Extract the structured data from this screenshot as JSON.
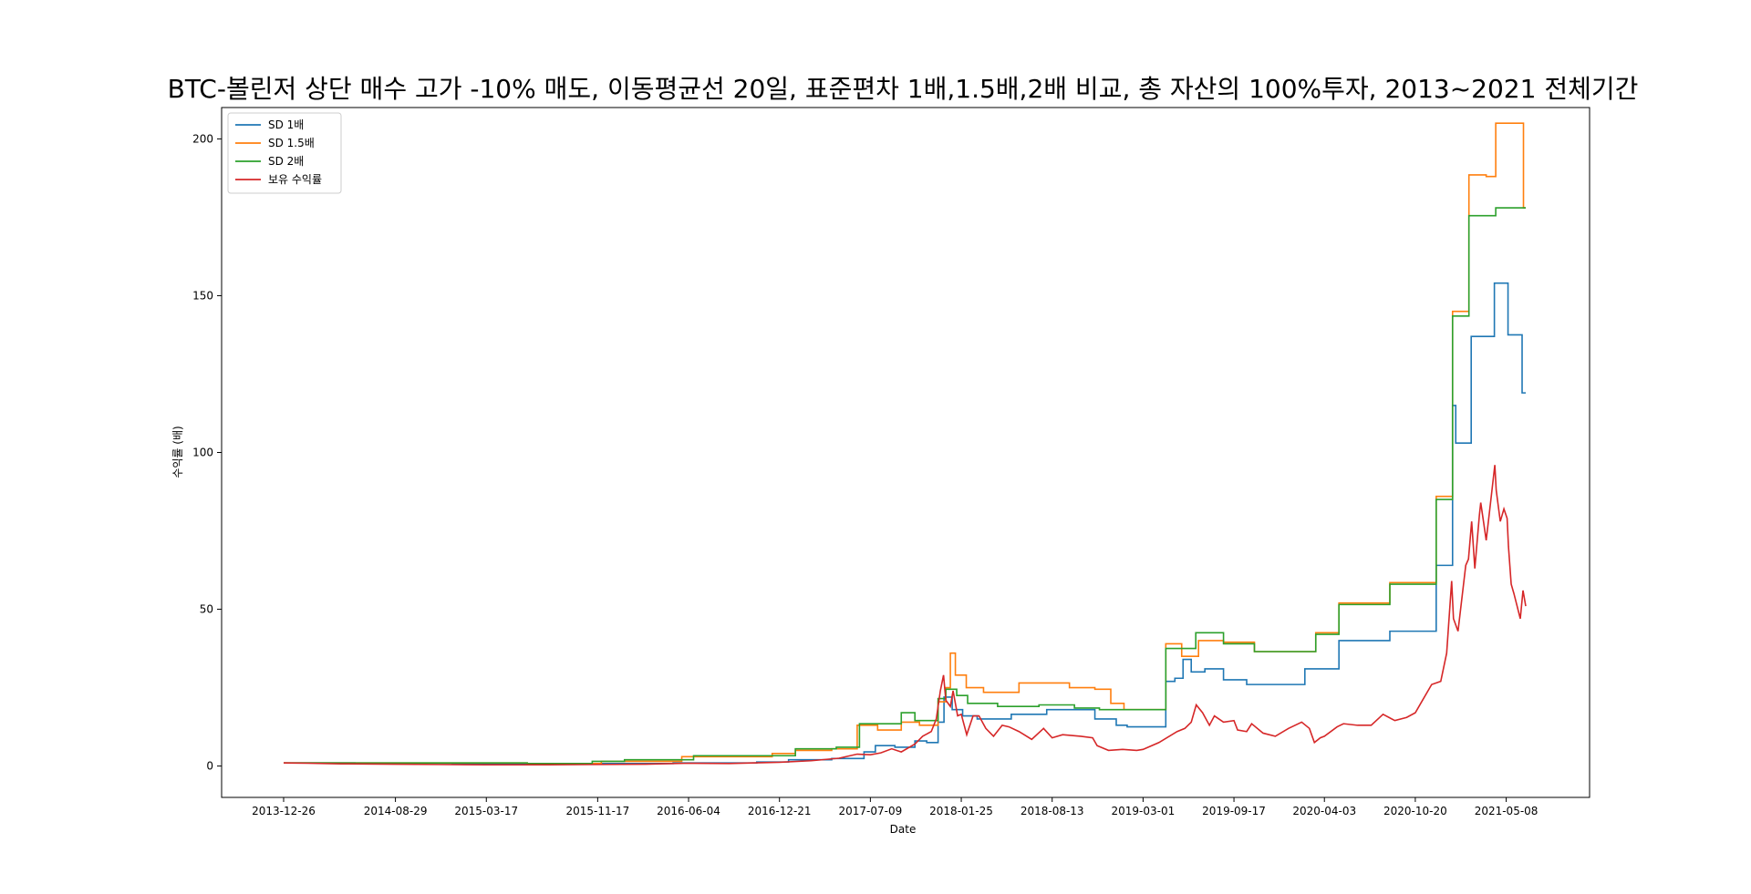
{
  "chart_data": {
    "type": "line",
    "title": "BTC-볼린저 상단 매수 고가 -10% 매도, 이동평균선 20일, 표준편차 1배,1.5배,2배 비교, 총 자산의 100%투자, 2013~2021 전체기간",
    "xlabel": "Date",
    "ylabel": "수익률 (배)",
    "x_range": [
      "2013-12-26",
      "2021-06-20"
    ],
    "ylim": [
      -10,
      210
    ],
    "yticks": [
      0,
      50,
      100,
      150,
      200
    ],
    "xticks": [
      "2013-12-26",
      "2014-08-29",
      "2015-03-17",
      "2015-11-17",
      "2016-06-04",
      "2016-12-21",
      "2017-07-09",
      "2018-01-25",
      "2018-08-13",
      "2019-03-01",
      "2019-09-17",
      "2020-04-03",
      "2020-10-20",
      "2021-05-08"
    ],
    "legend_position": "upper-left",
    "grid": false,
    "series": [
      {
        "name": "SD 1배",
        "color": "#1f77b4",
        "step": true,
        "points": [
          [
            "2013-12-26",
            1
          ],
          [
            "2014-06-01",
            0.9
          ],
          [
            "2015-01-01",
            0.7
          ],
          [
            "2015-10-01",
            0.8
          ],
          [
            "2016-05-01",
            1.0
          ],
          [
            "2016-11-01",
            1.3
          ],
          [
            "2017-01-10",
            2.0
          ],
          [
            "2017-04-15",
            2.4
          ],
          [
            "2017-06-25",
            4.5
          ],
          [
            "2017-07-20",
            6.5
          ],
          [
            "2017-09-01",
            6.0
          ],
          [
            "2017-10-15",
            8.0
          ],
          [
            "2017-11-10",
            7.5
          ],
          [
            "2017-12-05",
            14.0
          ],
          [
            "2017-12-18",
            22.0
          ],
          [
            "2018-01-05",
            18.0
          ],
          [
            "2018-01-28",
            16.0
          ],
          [
            "2018-03-01",
            15.0
          ],
          [
            "2018-05-15",
            16.5
          ],
          [
            "2018-08-01",
            18.0
          ],
          [
            "2018-11-15",
            15.0
          ],
          [
            "2019-01-01",
            13.0
          ],
          [
            "2019-01-25",
            12.5
          ],
          [
            "2019-04-20",
            27.0
          ],
          [
            "2019-05-10",
            28.0
          ],
          [
            "2019-05-28",
            34.0
          ],
          [
            "2019-06-15",
            30.0
          ],
          [
            "2019-07-15",
            31.0
          ],
          [
            "2019-08-25",
            27.5
          ],
          [
            "2019-10-15",
            26.0
          ],
          [
            "2020-02-20",
            31.0
          ],
          [
            "2020-05-05",
            40.0
          ],
          [
            "2020-08-25",
            43.0
          ],
          [
            "2020-12-05",
            64.0
          ],
          [
            "2021-01-10",
            115.0
          ],
          [
            "2021-01-17",
            103.0
          ],
          [
            "2021-02-20",
            137.0
          ],
          [
            "2021-04-12",
            154.0
          ],
          [
            "2021-05-12",
            137.5
          ],
          [
            "2021-06-12",
            119.0
          ],
          [
            "2021-06-20",
            119.0
          ]
        ]
      },
      {
        "name": "SD 1.5배",
        "color": "#ff7f0e",
        "step": true,
        "points": [
          [
            "2013-12-26",
            1
          ],
          [
            "2014-04-01",
            1.0
          ],
          [
            "2015-06-15",
            0.8
          ],
          [
            "2015-11-25",
            1.5
          ],
          [
            "2016-05-20",
            3.0
          ],
          [
            "2016-12-05",
            4.0
          ],
          [
            "2017-01-25",
            5.0
          ],
          [
            "2017-04-15",
            5.5
          ],
          [
            "2017-06-10",
            13.0
          ],
          [
            "2017-07-25",
            11.5
          ],
          [
            "2017-09-15",
            14.0
          ],
          [
            "2017-10-25",
            13.0
          ],
          [
            "2017-12-05",
            20.5
          ],
          [
            "2017-12-22",
            25.0
          ],
          [
            "2018-01-01",
            36.0
          ],
          [
            "2018-01-12",
            29.0
          ],
          [
            "2018-02-05",
            25.0
          ],
          [
            "2018-03-15",
            23.5
          ],
          [
            "2018-06-01",
            26.5
          ],
          [
            "2018-09-20",
            25.0
          ],
          [
            "2018-11-15",
            24.5
          ],
          [
            "2018-12-20",
            20.0
          ],
          [
            "2019-01-18",
            18.0
          ],
          [
            "2019-04-20",
            39.0
          ],
          [
            "2019-05-25",
            35.0
          ],
          [
            "2019-07-01",
            40.0
          ],
          [
            "2019-08-25",
            39.5
          ],
          [
            "2019-11-01",
            36.5
          ],
          [
            "2020-03-15",
            42.5
          ],
          [
            "2020-05-05",
            52.0
          ],
          [
            "2020-08-25",
            58.5
          ],
          [
            "2020-12-05",
            86.0
          ],
          [
            "2021-01-10",
            145.0
          ],
          [
            "2021-02-15",
            188.5
          ],
          [
            "2021-03-25",
            188.0
          ],
          [
            "2021-04-15",
            205.0
          ],
          [
            "2021-06-15",
            178.0
          ],
          [
            "2021-06-20",
            178.0
          ]
        ]
      },
      {
        "name": "SD 2배",
        "color": "#2ca02c",
        "step": true,
        "points": [
          [
            "2013-12-26",
            1
          ],
          [
            "2014-04-01",
            1.0
          ],
          [
            "2015-06-15",
            0.8
          ],
          [
            "2015-11-05",
            1.5
          ],
          [
            "2016-01-15",
            2.0
          ],
          [
            "2016-06-15",
            3.3
          ],
          [
            "2016-11-01",
            3.3
          ],
          [
            "2017-01-25",
            5.5
          ],
          [
            "2017-04-25",
            6.0
          ],
          [
            "2017-06-15",
            13.5
          ],
          [
            "2017-09-15",
            17.0
          ],
          [
            "2017-10-15",
            14.5
          ],
          [
            "2017-12-05",
            21.5
          ],
          [
            "2017-12-22",
            24.5
          ],
          [
            "2018-01-15",
            22.5
          ],
          [
            "2018-02-08",
            20.0
          ],
          [
            "2018-04-15",
            19.0
          ],
          [
            "2018-07-15",
            19.5
          ],
          [
            "2018-10-01",
            18.5
          ],
          [
            "2018-11-25",
            18.0
          ],
          [
            "2019-04-20",
            37.5
          ],
          [
            "2019-06-25",
            42.5
          ],
          [
            "2019-08-25",
            39.0
          ],
          [
            "2019-11-01",
            36.5
          ],
          [
            "2020-03-15",
            42.0
          ],
          [
            "2020-05-05",
            51.5
          ],
          [
            "2020-08-25",
            58.0
          ],
          [
            "2020-12-05",
            85.0
          ],
          [
            "2021-01-10",
            143.5
          ],
          [
            "2021-02-15",
            175.5
          ],
          [
            "2021-04-15",
            178.0
          ],
          [
            "2021-06-20",
            178.0
          ]
        ]
      },
      {
        "name": "보유 수익률",
        "color": "#d62728",
        "step": false,
        "points": [
          [
            "2013-12-26",
            1.0
          ],
          [
            "2014-02-15",
            0.9
          ],
          [
            "2014-05-01",
            0.7
          ],
          [
            "2014-08-29",
            0.6
          ],
          [
            "2014-12-01",
            0.5
          ],
          [
            "2015-03-17",
            0.4
          ],
          [
            "2015-08-01",
            0.4
          ],
          [
            "2015-11-17",
            0.5
          ],
          [
            "2016-03-01",
            0.6
          ],
          [
            "2016-06-04",
            0.9
          ],
          [
            "2016-09-01",
            0.8
          ],
          [
            "2016-12-21",
            1.2
          ],
          [
            "2017-03-01",
            1.7
          ],
          [
            "2017-05-01",
            2.5
          ],
          [
            "2017-06-10",
            3.8
          ],
          [
            "2017-07-09",
            3.6
          ],
          [
            "2017-08-01",
            4.2
          ],
          [
            "2017-08-25",
            5.5
          ],
          [
            "2017-09-15",
            4.5
          ],
          [
            "2017-10-15",
            7.0
          ],
          [
            "2017-11-01",
            9.5
          ],
          [
            "2017-11-20",
            11.0
          ],
          [
            "2017-12-01",
            15.0
          ],
          [
            "2017-12-10",
            24.0
          ],
          [
            "2017-12-17",
            29.0
          ],
          [
            "2017-12-22",
            21.0
          ],
          [
            "2018-01-01",
            19.0
          ],
          [
            "2018-01-07",
            24.0
          ],
          [
            "2018-01-17",
            16.0
          ],
          [
            "2018-01-25",
            16.5
          ],
          [
            "2018-02-06",
            10.0
          ],
          [
            "2018-02-20",
            16.0
          ],
          [
            "2018-03-05",
            16.0
          ],
          [
            "2018-03-20",
            12.0
          ],
          [
            "2018-04-06",
            9.5
          ],
          [
            "2018-04-25",
            13.0
          ],
          [
            "2018-05-10",
            12.5
          ],
          [
            "2018-06-01",
            11.0
          ],
          [
            "2018-06-29",
            8.5
          ],
          [
            "2018-07-25",
            12.0
          ],
          [
            "2018-08-13",
            9.0
          ],
          [
            "2018-09-05",
            10.0
          ],
          [
            "2018-10-15",
            9.5
          ],
          [
            "2018-11-10",
            9.0
          ],
          [
            "2018-11-20",
            6.5
          ],
          [
            "2018-12-15",
            5.0
          ],
          [
            "2019-01-15",
            5.3
          ],
          [
            "2019-02-15",
            5.0
          ],
          [
            "2019-03-01",
            5.3
          ],
          [
            "2019-04-05",
            7.5
          ],
          [
            "2019-05-15",
            11.0
          ],
          [
            "2019-06-01",
            12.0
          ],
          [
            "2019-06-15",
            14.0
          ],
          [
            "2019-06-26",
            19.5
          ],
          [
            "2019-07-10",
            17.0
          ],
          [
            "2019-07-25",
            13.0
          ],
          [
            "2019-08-05",
            16.0
          ],
          [
            "2019-08-25",
            14.0
          ],
          [
            "2019-09-17",
            14.5
          ],
          [
            "2019-09-25",
            11.5
          ],
          [
            "2019-10-15",
            11.0
          ],
          [
            "2019-10-26",
            13.5
          ],
          [
            "2019-11-20",
            10.5
          ],
          [
            "2019-12-17",
            9.5
          ],
          [
            "2020-01-15",
            12.0
          ],
          [
            "2020-02-13",
            14.0
          ],
          [
            "2020-03-01",
            12.0
          ],
          [
            "2020-03-12",
            7.5
          ],
          [
            "2020-03-25",
            9.0
          ],
          [
            "2020-04-03",
            9.5
          ],
          [
            "2020-05-01",
            12.5
          ],
          [
            "2020-05-15",
            13.5
          ],
          [
            "2020-06-15",
            13.0
          ],
          [
            "2020-07-15",
            13.0
          ],
          [
            "2020-08-10",
            16.5
          ],
          [
            "2020-09-05",
            14.5
          ],
          [
            "2020-10-01",
            15.5
          ],
          [
            "2020-10-20",
            17.0
          ],
          [
            "2020-11-05",
            21.0
          ],
          [
            "2020-11-25",
            26.0
          ],
          [
            "2020-12-15",
            27.0
          ],
          [
            "2020-12-28",
            36.0
          ],
          [
            "2021-01-08",
            59.0
          ],
          [
            "2021-01-12",
            47.0
          ],
          [
            "2021-01-22",
            43.0
          ],
          [
            "2021-02-08",
            64.0
          ],
          [
            "2021-02-14",
            66.0
          ],
          [
            "2021-02-21",
            78.0
          ],
          [
            "2021-02-28",
            63.0
          ],
          [
            "2021-03-10",
            80.0
          ],
          [
            "2021-03-13",
            84.0
          ],
          [
            "2021-03-25",
            72.0
          ],
          [
            "2021-04-02",
            82.0
          ],
          [
            "2021-04-13",
            96.0
          ],
          [
            "2021-04-16",
            88.0
          ],
          [
            "2021-04-25",
            78.0
          ],
          [
            "2021-05-03",
            82.0
          ],
          [
            "2021-05-10",
            79.0
          ],
          [
            "2021-05-13",
            70.0
          ],
          [
            "2021-05-19",
            58.0
          ],
          [
            "2021-05-25",
            55.0
          ],
          [
            "2021-06-01",
            51.0
          ],
          [
            "2021-06-08",
            47.0
          ],
          [
            "2021-06-14",
            56.0
          ],
          [
            "2021-06-20",
            51.0
          ]
        ]
      }
    ]
  }
}
